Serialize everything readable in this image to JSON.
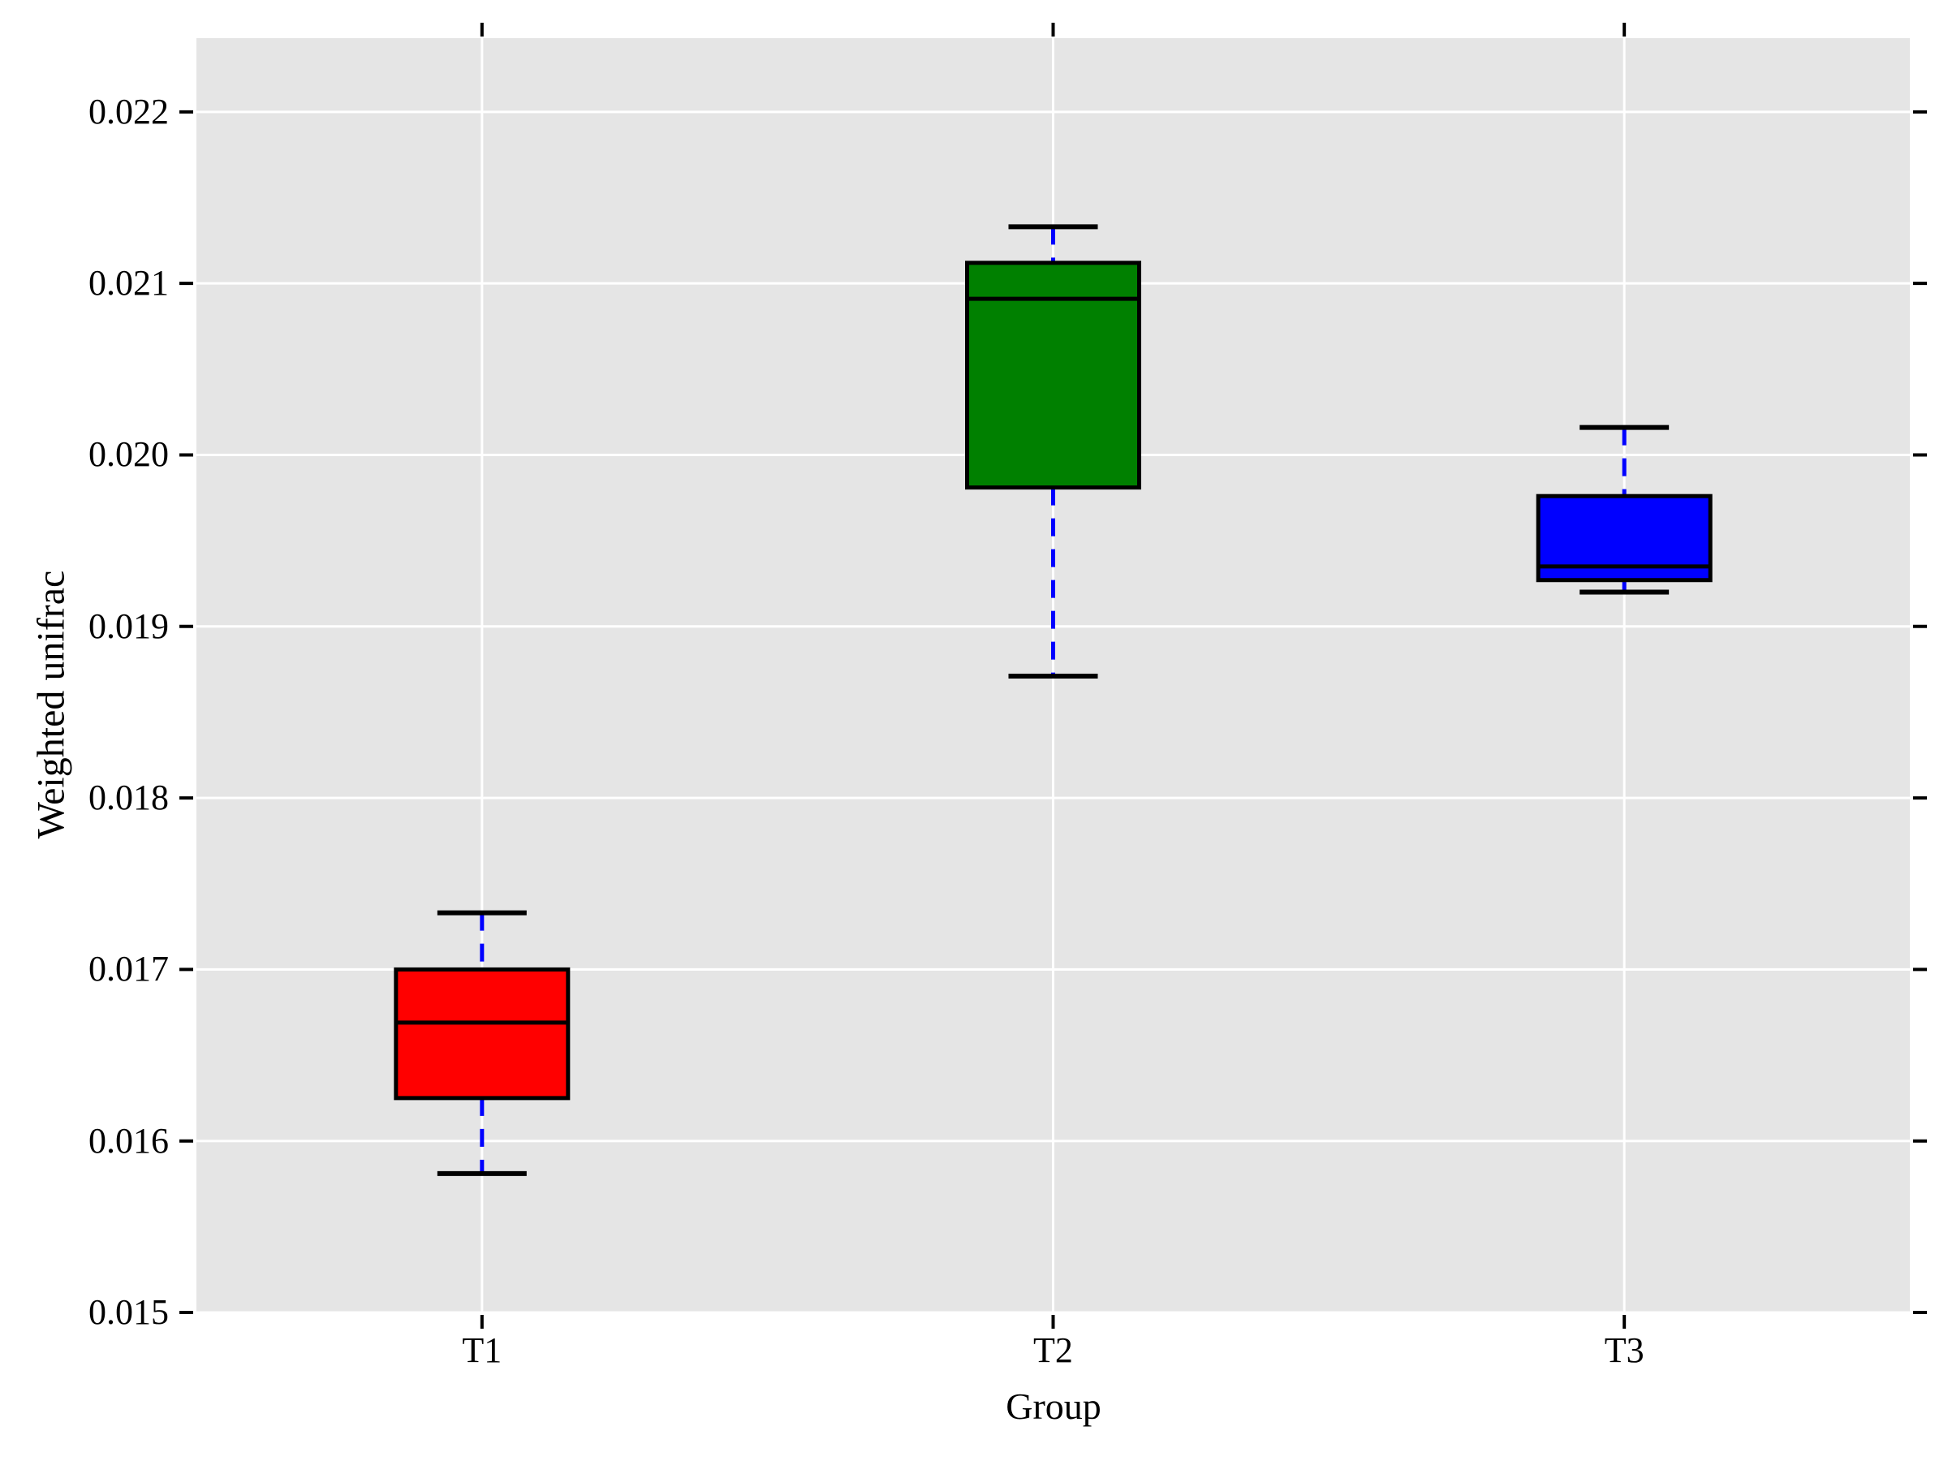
{
  "chart_data": {
    "type": "box",
    "title": "",
    "xlabel": "Group",
    "ylabel": "Weighted unifrac",
    "categories": [
      "T1",
      "T2",
      "T3"
    ],
    "y_ticks": [
      0.015,
      0.016,
      0.017,
      0.018,
      0.019,
      0.02,
      0.021,
      0.022
    ],
    "y_tick_labels": [
      "0.015",
      "0.016",
      "0.017",
      "0.018",
      "0.019",
      "0.020",
      "0.021",
      "0.022"
    ],
    "ylim": [
      0.015,
      0.02243
    ],
    "grid": true,
    "legend_position": "none",
    "series": [
      {
        "name": "T1",
        "box_color": "#FF0000",
        "whisker_low": 0.01581,
        "q1": 0.01625,
        "median": 0.01669,
        "q3": 0.017,
        "whisker_high": 0.01733
      },
      {
        "name": "T2",
        "box_color": "#008000",
        "whisker_low": 0.01871,
        "q1": 0.01981,
        "median": 0.02091,
        "q3": 0.02112,
        "whisker_high": 0.02133
      },
      {
        "name": "T3",
        "box_color": "#0000FF",
        "whisker_low": 0.0192,
        "q1": 0.01927,
        "median": 0.01935,
        "q3": 0.01976,
        "whisker_high": 0.02016
      }
    ],
    "style": {
      "plot_background": "#E5E5E5",
      "gridline_color": "#FFFFFF",
      "tick_color": "#000000",
      "box_edge_color": "#000000",
      "median_color": "#000000",
      "whisker_color": "#0000FF",
      "cap_color": "#000000"
    }
  }
}
